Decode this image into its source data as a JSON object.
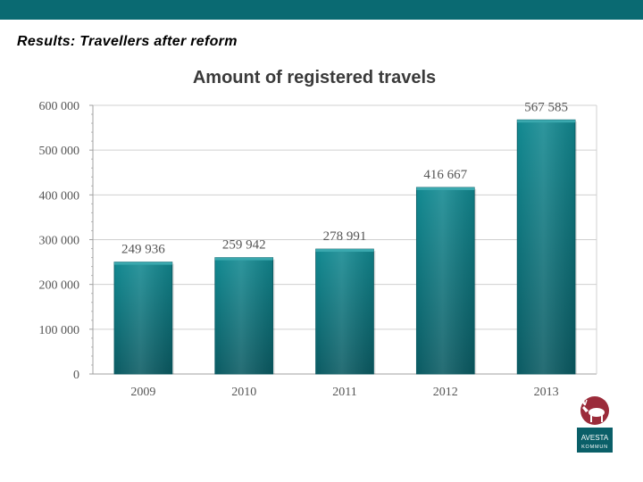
{
  "slide": {
    "title": "Results: Travellers after reform",
    "accent_color": "#0a6a72"
  },
  "chart_data": {
    "type": "bar",
    "title": "Amount of registered travels",
    "categories": [
      "2009",
      "2010",
      "2011",
      "2012",
      "2013"
    ],
    "values": [
      249936,
      259942,
      278991,
      416667,
      567585
    ],
    "value_labels": [
      "249 936",
      "259 942",
      "278 991",
      "416 667",
      "567 585"
    ],
    "ylim": [
      0,
      600000
    ],
    "yticks": [
      0,
      100000,
      200000,
      300000,
      400000,
      500000,
      600000
    ],
    "ytick_labels": [
      "0",
      "100 000",
      "200 000",
      "300 000",
      "400 000",
      "500 000",
      "600 000"
    ],
    "grid": true,
    "bar_color": "#0d7c84",
    "xlabel": "",
    "ylabel": ""
  },
  "logo": {
    "icon": "elk-icon",
    "text_line1": "AVESTA",
    "text_line2": "KOMMUN",
    "color": "#0a5f68",
    "emblem_color": "#9b2b3a"
  }
}
